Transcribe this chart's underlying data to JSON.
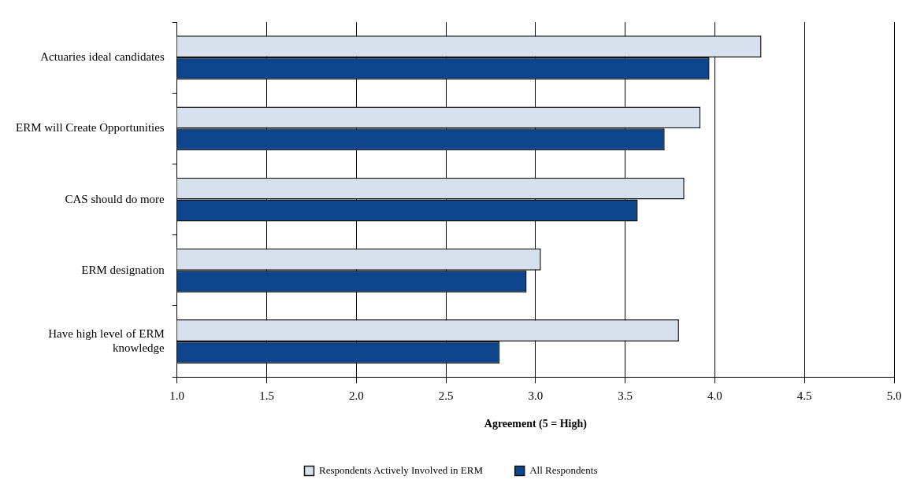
{
  "chart_data": {
    "type": "bar",
    "orientation": "horizontal",
    "xlabel": "Agreement (5 = High)",
    "categories": [
      "Actuaries ideal candidates",
      "ERM will Create Opportunities",
      "CAS should do more",
      "ERM designation",
      "Have high level of ERM knowledge"
    ],
    "series": [
      {
        "name": "Respondents Actively Involved in ERM",
        "color": "#d6e1ed",
        "values": [
          4.26,
          3.92,
          3.83,
          3.03,
          3.8
        ]
      },
      {
        "name": "All Respondents",
        "color": "#0d448c",
        "values": [
          3.97,
          3.72,
          3.57,
          2.95,
          2.8
        ]
      }
    ],
    "xlim": [
      1,
      5
    ],
    "xticks": [
      {
        "value": 1,
        "label": "1.0"
      },
      {
        "value": 1.5,
        "label": "1.5"
      },
      {
        "value": 2,
        "label": "2.0"
      },
      {
        "value": 2.5,
        "label": "2.5"
      },
      {
        "value": 3,
        "label": "3.0"
      },
      {
        "value": 3.5,
        "label": "3.5"
      },
      {
        "value": 4,
        "label": "4.0"
      },
      {
        "value": 4.5,
        "label": "4.5"
      },
      {
        "value": 5,
        "label": "5.0"
      }
    ],
    "grid": "x",
    "legend": "bottom"
  }
}
